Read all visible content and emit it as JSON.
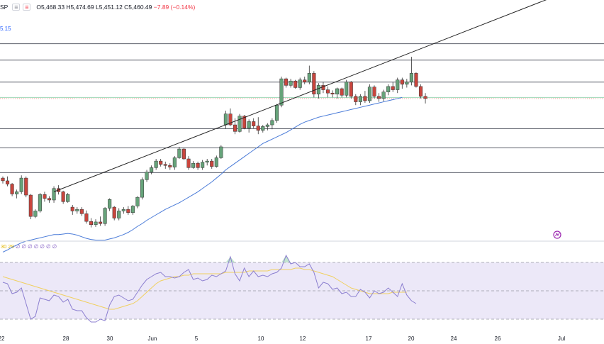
{
  "header": {
    "symbol": "SP",
    "btn1": "≡",
    "btn2": "≡",
    "ohlc_prefix": "O5,468.33  H5,474.69  L5,451.12  C5,460.49",
    "change": "−7.89 (−0.14%)"
  },
  "ma_label": "5.15",
  "rsi_label": {
    "name": "30 28",
    "values": "∅ ∅ ∅ ∅ ∅ ∅ ∅"
  },
  "colors": {
    "up": "#66a37a",
    "down": "#c9453d",
    "ma": "#4a7bd8",
    "rsi": "#8c7fd0",
    "rsi_ma": "#f0d060",
    "rsi_bg": "#ece8f8"
  },
  "icons": [
    "tradingview-logo-icon"
  ],
  "chart_data": {
    "type": "candlestick",
    "x_tick_labels": [
      "22",
      "28",
      "30",
      "Jun",
      "5",
      "10",
      "12",
      "17",
      "20",
      "24",
      "26",
      "Jul"
    ],
    "horizontal_levels": [
      5560,
      5530,
      5490,
      5405,
      5370,
      5325
    ],
    "trendline": {
      "from": [
        11,
        5290
      ],
      "to": [
        64,
        5465
      ]
    },
    "candles": [
      [
        5315,
        5318,
        5305,
        5310
      ],
      [
        5310,
        5318,
        5300,
        5304
      ],
      [
        5304,
        5306,
        5282,
        5286
      ],
      [
        5286,
        5294,
        5278,
        5290
      ],
      [
        5290,
        5320,
        5286,
        5315
      ],
      [
        5315,
        5318,
        5280,
        5284
      ],
      [
        5284,
        5286,
        5240,
        5245
      ],
      [
        5245,
        5258,
        5242,
        5255
      ],
      [
        5255,
        5288,
        5252,
        5285
      ],
      [
        5285,
        5290,
        5272,
        5278
      ],
      [
        5278,
        5282,
        5270,
        5275
      ],
      [
        5275,
        5300,
        5270,
        5296
      ],
      [
        5296,
        5302,
        5285,
        5290
      ],
      [
        5290,
        5292,
        5268,
        5272
      ],
      [
        5272,
        5288,
        5270,
        5285
      ],
      [
        5262,
        5266,
        5248,
        5255
      ],
      [
        5255,
        5262,
        5250,
        5258
      ],
      [
        5258,
        5262,
        5246,
        5250
      ],
      [
        5250,
        5256,
        5232,
        5236
      ],
      [
        5236,
        5242,
        5225,
        5230
      ],
      [
        5230,
        5240,
        5226,
        5235
      ],
      [
        5235,
        5245,
        5228,
        5232
      ],
      [
        5232,
        5262,
        5228,
        5260
      ],
      [
        5260,
        5278,
        5255,
        5276
      ],
      [
        5262,
        5264,
        5238,
        5242
      ],
      [
        5242,
        5260,
        5238,
        5255
      ],
      [
        5255,
        5262,
        5250,
        5258
      ],
      [
        5258,
        5264,
        5248,
        5252
      ],
      [
        5252,
        5266,
        5248,
        5264
      ],
      [
        5264,
        5282,
        5260,
        5280
      ],
      [
        5280,
        5316,
        5276,
        5312
      ],
      [
        5312,
        5330,
        5308,
        5326
      ],
      [
        5326,
        5338,
        5322,
        5334
      ],
      [
        5334,
        5350,
        5330,
        5346
      ],
      [
        5346,
        5350,
        5336,
        5340
      ],
      [
        5340,
        5345,
        5332,
        5338
      ],
      [
        5338,
        5342,
        5330,
        5335
      ],
      [
        5335,
        5355,
        5330,
        5352
      ],
      [
        5352,
        5372,
        5350,
        5368
      ],
      [
        5368,
        5370,
        5348,
        5350
      ],
      [
        5350,
        5355,
        5330,
        5334
      ],
      [
        5334,
        5346,
        5332,
        5342
      ],
      [
        5342,
        5345,
        5330,
        5334
      ],
      [
        5334,
        5348,
        5330,
        5344
      ],
      [
        5344,
        5350,
        5338,
        5346
      ],
      [
        5346,
        5350,
        5332,
        5336
      ],
      [
        5336,
        5356,
        5334,
        5352
      ],
      [
        5352,
        5375,
        5350,
        5372
      ],
      [
        5412,
        5438,
        5405,
        5432
      ],
      [
        5432,
        5442,
        5410,
        5412
      ],
      [
        5412,
        5424,
        5395,
        5400
      ],
      [
        5400,
        5432,
        5398,
        5428
      ],
      [
        5428,
        5430,
        5404,
        5406
      ],
      [
        5406,
        5422,
        5398,
        5418
      ],
      [
        5418,
        5424,
        5406,
        5410
      ],
      [
        5410,
        5426,
        5395,
        5402
      ],
      [
        5402,
        5412,
        5398,
        5409
      ],
      [
        5409,
        5415,
        5402,
        5412
      ],
      [
        5412,
        5424,
        5404,
        5420
      ],
      [
        5420,
        5450,
        5416,
        5448
      ],
      [
        5448,
        5500,
        5444,
        5496
      ],
      [
        5496,
        5498,
        5480,
        5484
      ],
      [
        5484,
        5496,
        5480,
        5492
      ],
      [
        5492,
        5494,
        5478,
        5480
      ],
      [
        5480,
        5498,
        5476,
        5494
      ],
      [
        5494,
        5500,
        5486,
        5490
      ],
      [
        5490,
        5520,
        5486,
        5506
      ],
      [
        5506,
        5510,
        5462,
        5468
      ],
      [
        5468,
        5488,
        5460,
        5484
      ],
      [
        5484,
        5490,
        5470,
        5476
      ],
      [
        5476,
        5482,
        5462,
        5470
      ],
      [
        5470,
        5475,
        5462,
        5468
      ],
      [
        5468,
        5480,
        5460,
        5478
      ],
      [
        5478,
        5480,
        5462,
        5466
      ],
      [
        5466,
        5494,
        5462,
        5490
      ],
      [
        5490,
        5492,
        5460,
        5464
      ],
      [
        5464,
        5468,
        5448,
        5454
      ],
      [
        5454,
        5468,
        5448,
        5464
      ],
      [
        5464,
        5474,
        5452,
        5456
      ],
      [
        5456,
        5486,
        5452,
        5481
      ],
      [
        5481,
        5484,
        5460,
        5464
      ],
      [
        5464,
        5470,
        5454,
        5460
      ],
      [
        5460,
        5476,
        5455,
        5472
      ],
      [
        5472,
        5486,
        5466,
        5482
      ],
      [
        5482,
        5490,
        5472,
        5476
      ],
      [
        5476,
        5498,
        5470,
        5494
      ],
      [
        5494,
        5498,
        5478,
        5486
      ],
      [
        5486,
        5496,
        5480,
        5490
      ],
      [
        5490,
        5536,
        5484,
        5506
      ],
      [
        5506,
        5508,
        5480,
        5482
      ],
      [
        5482,
        5486,
        5460,
        5464
      ],
      [
        5464,
        5470,
        5451,
        5460
      ]
    ],
    "moving_average": [
      5180,
      5184,
      5189,
      5193,
      5197,
      5200,
      5202,
      5204,
      5206,
      5208,
      5210,
      5212,
      5212,
      5213,
      5214,
      5213,
      5211,
      5208,
      5205,
      5203,
      5202,
      5202,
      5202,
      5204,
      5206,
      5209,
      5212,
      5216,
      5221,
      5227,
      5232,
      5238,
      5243,
      5248,
      5253,
      5258,
      5262,
      5266,
      5270,
      5275,
      5280,
      5285,
      5290,
      5296,
      5302,
      5308,
      5315,
      5322,
      5330,
      5336,
      5342,
      5348,
      5354,
      5360,
      5366,
      5372,
      5378,
      5382,
      5386,
      5390,
      5394,
      5398,
      5403,
      5408,
      5413,
      5417,
      5420,
      5423,
      5426,
      5428,
      5430,
      5432,
      5434,
      5436,
      5438,
      5440,
      5442,
      5444,
      5446,
      5448,
      5450,
      5452,
      5454,
      5456,
      5458,
      5460,
      5462
    ],
    "rsi_ylim": [
      20,
      85
    ],
    "rsi_levels": [
      70,
      50,
      30
    ],
    "rsi": [
      56,
      55,
      48,
      49,
      52,
      41,
      30,
      32,
      45,
      44,
      43,
      47,
      46,
      42,
      44,
      37,
      36,
      36,
      31,
      28,
      28,
      30,
      29,
      40,
      46,
      47,
      45,
      43,
      44,
      49,
      54,
      58,
      60,
      62,
      63,
      60,
      60,
      59,
      60,
      63,
      65,
      58,
      59,
      57,
      58,
      61,
      60,
      62,
      64,
      74,
      62,
      57,
      66,
      60,
      64,
      60,
      61,
      60,
      62,
      63,
      66,
      75,
      69,
      70,
      67,
      67,
      69,
      63,
      52,
      56,
      55,
      51,
      52,
      48,
      49,
      46,
      46,
      51,
      49,
      45,
      50,
      48,
      49,
      52,
      49,
      46,
      55,
      47,
      43,
      41
    ],
    "rsi_ma": [
      60,
      59,
      58,
      57,
      56,
      55,
      54,
      53,
      52,
      51,
      50,
      49,
      48,
      47,
      46,
      45,
      44,
      43,
      42,
      41,
      40,
      39,
      38,
      37,
      37,
      38,
      39,
      40,
      41,
      43,
      46,
      49,
      52,
      55,
      57,
      58,
      59,
      60,
      60,
      61,
      61,
      62,
      62,
      62,
      62,
      62,
      62,
      62,
      63,
      63,
      63,
      63,
      63,
      64,
      64,
      64,
      64,
      64,
      65,
      65,
      65,
      65,
      65,
      66,
      66,
      65,
      65,
      64,
      63,
      62,
      61,
      60,
      58,
      56,
      54,
      52,
      51,
      50,
      49,
      48,
      48,
      48,
      48,
      48,
      49,
      49,
      49,
      49
    ]
  }
}
